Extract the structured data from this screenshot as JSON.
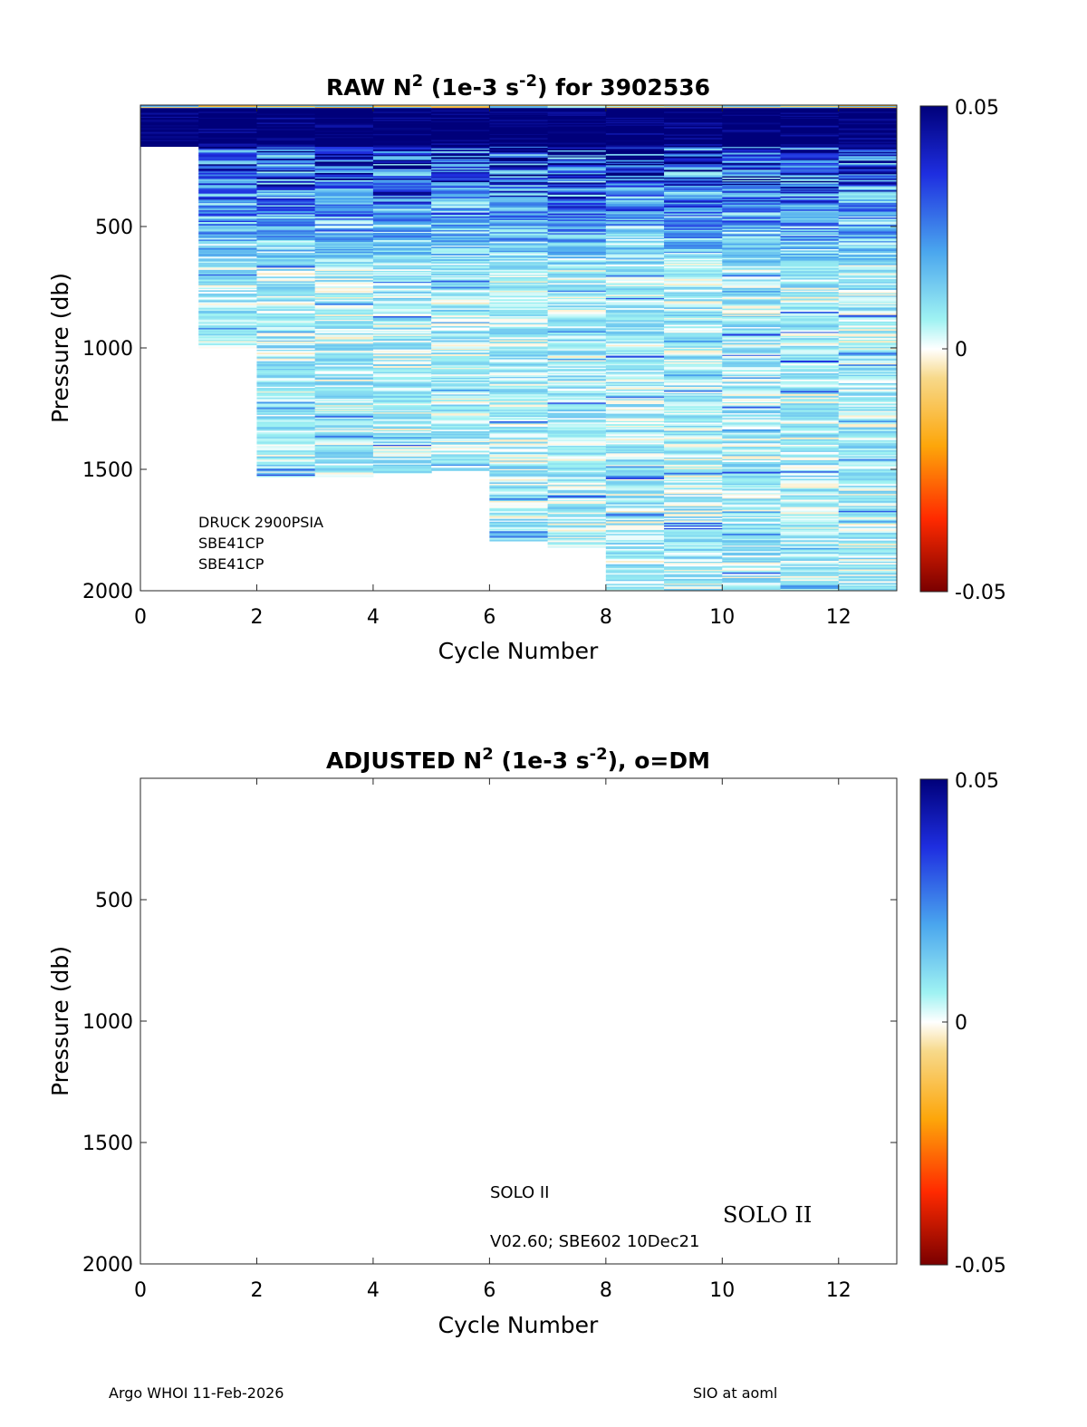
{
  "chart_data": [
    {
      "type": "heatmap",
      "title": {
        "prefix": "RAW N",
        "sup1": "2",
        "middle": " (1e-3 s",
        "sup2": "-2",
        "suffix": ") for 3902536"
      },
      "xlabel": "Cycle Number",
      "ylabel": "Pressure (db)",
      "xlim": [
        0,
        13
      ],
      "ylim": [
        2000,
        0
      ],
      "y_reversed": true,
      "xticks": [
        "0",
        "2",
        "4",
        "6",
        "8",
        "10",
        "12"
      ],
      "yticks": [
        "500",
        "1000",
        "1500",
        "2000"
      ],
      "clim": [
        -0.05,
        0.05
      ],
      "colorbar_ticks": [
        "0.05",
        "0",
        "-0.05"
      ],
      "colormap": "blue-cyan-white-orange-red",
      "annotations": [
        "DRUCK 2900PSIA",
        "SBE41CP",
        "SBE41CP"
      ],
      "cycles": [
        {
          "cycle": 0,
          "max_pressure": 170
        },
        {
          "cycle": 1,
          "max_pressure": 1000
        },
        {
          "cycle": 2,
          "max_pressure": 1530
        },
        {
          "cycle": 3,
          "max_pressure": 1530
        },
        {
          "cycle": 4,
          "max_pressure": 1515
        },
        {
          "cycle": 5,
          "max_pressure": 1505
        },
        {
          "cycle": 6,
          "max_pressure": 1795
        },
        {
          "cycle": 7,
          "max_pressure": 1820
        },
        {
          "cycle": 8,
          "max_pressure": 2000
        },
        {
          "cycle": 9,
          "max_pressure": 2000
        },
        {
          "cycle": 10,
          "max_pressure": 2000
        },
        {
          "cycle": 11,
          "max_pressure": 2000
        },
        {
          "cycle": 12,
          "max_pressure": 2000
        }
      ],
      "summary": {
        "surface_layer_0_170db": 0.05,
        "deep_water": 0.005
      }
    },
    {
      "type": "heatmap",
      "title": {
        "prefix": "ADJUSTED N",
        "sup1": "2",
        "middle": " (1e-3 s",
        "sup2": "-2",
        "suffix": "), o=DM"
      },
      "xlabel": "Cycle Number",
      "ylabel": "Pressure (db)",
      "xlim": [
        0,
        13
      ],
      "ylim": [
        2000,
        0
      ],
      "y_reversed": true,
      "xticks": [
        "0",
        "2",
        "4",
        "6",
        "8",
        "10",
        "12"
      ],
      "yticks": [
        "500",
        "1000",
        "1500",
        "2000"
      ],
      "clim": [
        -0.05,
        0.05
      ],
      "colorbar_ticks": [
        "0.05",
        "0",
        "-0.05"
      ],
      "annotations": [
        "SOLO II",
        "V02.60; SBE602 10Dec21",
        "SOLO II"
      ],
      "cycles": []
    }
  ],
  "footer": {
    "left": "Argo WHOI 11-Feb-2026",
    "right": "SIO at aoml"
  }
}
